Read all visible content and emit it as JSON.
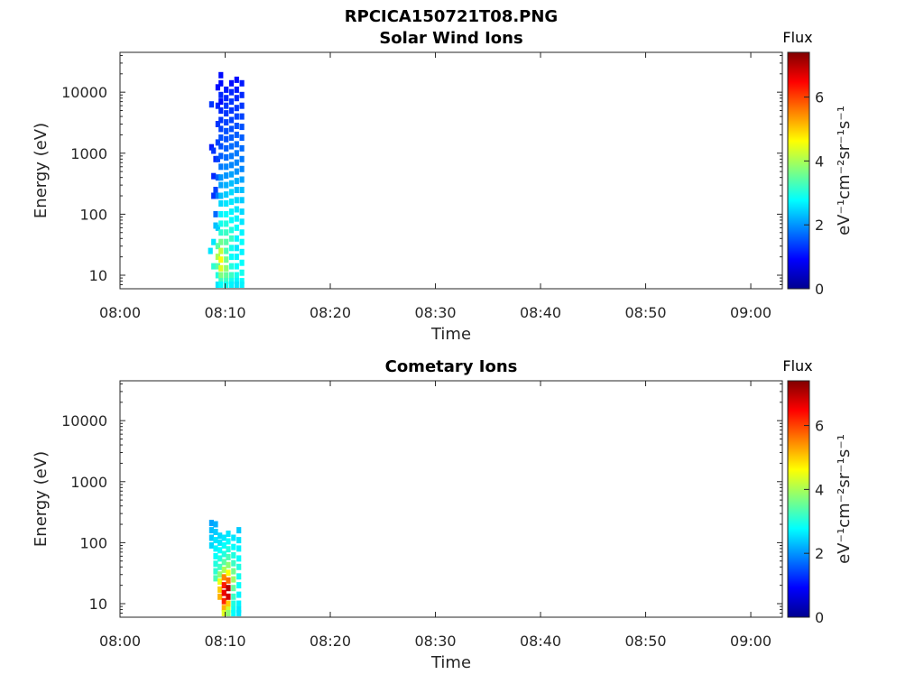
{
  "figure_title": "RPCICA150721T08.PNG",
  "chart_data": [
    {
      "type": "heatmap",
      "title": "Solar Wind Ions",
      "xlabel": "Time",
      "ylabel": "Energy (eV)",
      "x_range_minutes": [
        0,
        63
      ],
      "x_tick_labels": [
        "08:00",
        "08:10",
        "08:20",
        "08:30",
        "08:40",
        "08:50",
        "09:00"
      ],
      "yscale": "log",
      "ylim": [
        6,
        45000
      ],
      "y_tick_labels": [
        "10",
        "100",
        "1000",
        "10000"
      ],
      "y_tick_values": [
        10,
        100,
        1000,
        10000
      ],
      "colorbar": {
        "label": "Flux",
        "units": "eV⁻¹cm⁻²sr⁻¹s⁻¹",
        "range": [
          0,
          7.4
        ],
        "tick_labels": [
          "0",
          "2",
          "4",
          "6"
        ],
        "tick_values": [
          0,
          2,
          4,
          6
        ],
        "colormap": "jet"
      },
      "columns": [
        {
          "t": 8.6,
          "cells": [
            [
              25,
              2.6
            ]
          ]
        },
        {
          "t": 8.7,
          "cells": [
            [
              6300,
              1.3
            ],
            [
              1250,
              1.1
            ]
          ]
        },
        {
          "t": 8.9,
          "cells": [
            [
              1100,
              1.3
            ],
            [
              420,
              1.2
            ],
            [
              200,
              1.3
            ],
            [
              35,
              2.6
            ],
            [
              14,
              3.1
            ]
          ]
        },
        {
          "t": 9.1,
          "cells": [
            [
              100,
              1.7
            ],
            [
              65,
              2.3
            ],
            [
              250,
              1.4
            ],
            [
              800,
              1.2
            ]
          ]
        },
        {
          "t": 9.3,
          "cells": [
            [
              12000,
              1.0
            ],
            [
              6000,
              1.2
            ],
            [
              3000,
              1.3
            ],
            [
              1500,
              1.4
            ],
            [
              800,
              1.4
            ],
            [
              400,
              1.6
            ],
            [
              200,
              1.8
            ],
            [
              60,
              2.4
            ],
            [
              30,
              3.4
            ],
            [
              20,
              4.0
            ],
            [
              14,
              3.4
            ],
            [
              10,
              3.0
            ],
            [
              7,
              2.6
            ]
          ]
        },
        {
          "t": 9.6,
          "cells": [
            [
              19000,
              1.0
            ],
            [
              14000,
              1.0
            ],
            [
              9000,
              1.2
            ],
            [
              7000,
              1.0
            ],
            [
              5000,
              1.2
            ],
            [
              3500,
              1.3
            ],
            [
              2500,
              1.4
            ],
            [
              1800,
              1.5
            ],
            [
              1300,
              1.5
            ],
            [
              900,
              1.6
            ],
            [
              600,
              1.8
            ],
            [
              400,
              2.0
            ],
            [
              300,
              2.1
            ],
            [
              200,
              2.3
            ],
            [
              150,
              2.5
            ],
            [
              100,
              2.7
            ],
            [
              70,
              2.9
            ],
            [
              50,
              3.1
            ],
            [
              35,
              3.6
            ],
            [
              25,
              4.2
            ],
            [
              18,
              4.6
            ],
            [
              13,
              4.4
            ],
            [
              10,
              3.7
            ],
            [
              8,
              3.2
            ],
            [
              7,
              2.8
            ]
          ]
        },
        {
          "t": 10.1,
          "cells": [
            [
              11000,
              1.1
            ],
            [
              8000,
              1.2
            ],
            [
              6000,
              1.3
            ],
            [
              4500,
              1.3
            ],
            [
              3200,
              1.4
            ],
            [
              2300,
              1.5
            ],
            [
              1700,
              1.5
            ],
            [
              1200,
              1.6
            ],
            [
              850,
              1.7
            ],
            [
              600,
              1.9
            ],
            [
              430,
              2.0
            ],
            [
              300,
              2.2
            ],
            [
              210,
              2.4
            ],
            [
              150,
              2.6
            ],
            [
              100,
              2.8
            ],
            [
              70,
              3.0
            ],
            [
              50,
              3.2
            ],
            [
              35,
              3.4
            ],
            [
              25,
              3.3
            ],
            [
              18,
              3.6
            ],
            [
              13,
              3.8
            ],
            [
              10,
              3.5
            ],
            [
              8,
              3.2
            ],
            [
              7,
              2.9
            ]
          ]
        },
        {
          "t": 10.6,
          "cells": [
            [
              14000,
              1.0
            ],
            [
              10000,
              1.2
            ],
            [
              7000,
              1.3
            ],
            [
              5000,
              1.3
            ],
            [
              3500,
              1.4
            ],
            [
              2500,
              1.5
            ],
            [
              1800,
              1.6
            ],
            [
              1300,
              1.7
            ],
            [
              900,
              1.8
            ],
            [
              640,
              1.9
            ],
            [
              450,
              2.1
            ],
            [
              320,
              2.3
            ],
            [
              230,
              2.5
            ],
            [
              160,
              2.6
            ],
            [
              110,
              2.7
            ],
            [
              80,
              2.8
            ],
            [
              55,
              3.0
            ],
            [
              40,
              3.2
            ],
            [
              28,
              2.9
            ],
            [
              20,
              2.8
            ],
            [
              14,
              3.0
            ],
            [
              10,
              3.2
            ],
            [
              8,
              2.9
            ],
            [
              7,
              2.7
            ]
          ]
        },
        {
          "t": 11.1,
          "cells": [
            [
              16000,
              1.0
            ],
            [
              11000,
              1.1
            ],
            [
              8000,
              1.2
            ],
            [
              5500,
              1.3
            ],
            [
              4000,
              1.4
            ],
            [
              2800,
              1.5
            ],
            [
              2000,
              1.6
            ],
            [
              1400,
              1.7
            ],
            [
              1000,
              1.8
            ],
            [
              700,
              1.9
            ],
            [
              500,
              2.0
            ],
            [
              350,
              2.2
            ],
            [
              250,
              2.3
            ],
            [
              170,
              2.5
            ],
            [
              120,
              2.6
            ],
            [
              85,
              2.7
            ],
            [
              60,
              2.8
            ],
            [
              40,
              2.7
            ],
            [
              28,
              2.6
            ],
            [
              20,
              2.7
            ],
            [
              14,
              2.8
            ],
            [
              10,
              2.9
            ],
            [
              8,
              2.7
            ],
            [
              7,
              2.6
            ]
          ]
        },
        {
          "t": 11.6,
          "cells": [
            [
              14000,
              1.1
            ],
            [
              9000,
              1.2
            ],
            [
              6000,
              1.3
            ],
            [
              4000,
              1.4
            ],
            [
              2700,
              1.5
            ],
            [
              1800,
              1.6
            ],
            [
              1200,
              1.7
            ],
            [
              800,
              1.8
            ],
            [
              550,
              1.9
            ],
            [
              370,
              2.1
            ],
            [
              250,
              2.3
            ],
            [
              170,
              2.4
            ],
            [
              110,
              2.5
            ],
            [
              75,
              2.6
            ],
            [
              50,
              2.7
            ],
            [
              35,
              2.8
            ],
            [
              24,
              2.7
            ],
            [
              16,
              2.8
            ],
            [
              11,
              2.9
            ],
            [
              8,
              2.8
            ],
            [
              7,
              2.7
            ]
          ]
        }
      ]
    },
    {
      "type": "heatmap",
      "title": "Cometary Ions",
      "xlabel": "Time",
      "ylabel": "Energy (eV)",
      "x_range_minutes": [
        0,
        63
      ],
      "x_tick_labels": [
        "08:00",
        "08:10",
        "08:20",
        "08:30",
        "08:40",
        "08:50",
        "09:00"
      ],
      "yscale": "log",
      "ylim": [
        6,
        45000
      ],
      "y_tick_labels": [
        "10",
        "100",
        "1000",
        "10000"
      ],
      "y_tick_values": [
        10,
        100,
        1000,
        10000
      ],
      "colorbar": {
        "label": "Flux",
        "units": "eV⁻¹cm⁻²sr⁻¹s⁻¹",
        "range": [
          0,
          7.4
        ],
        "tick_labels": [
          "0",
          "2",
          "4",
          "6"
        ],
        "tick_values": [
          0,
          2,
          4,
          6
        ],
        "colormap": "jet"
      },
      "columns": [
        {
          "t": 8.7,
          "cells": [
            [
              210,
              2.1
            ],
            [
              160,
              2.3
            ],
            [
              120,
              2.4
            ],
            [
              90,
              2.5
            ]
          ]
        },
        {
          "t": 9.1,
          "cells": [
            [
              200,
              2.2
            ],
            [
              150,
              2.4
            ],
            [
              110,
              2.6
            ],
            [
              80,
              2.7
            ],
            [
              60,
              2.8
            ],
            [
              45,
              3.0
            ],
            [
              34,
              3.1
            ],
            [
              26,
              3.3
            ]
          ]
        },
        {
          "t": 9.5,
          "cells": [
            [
              130,
              2.5
            ],
            [
              100,
              2.6
            ],
            [
              75,
              2.8
            ],
            [
              55,
              3.0
            ],
            [
              40,
              3.2
            ],
            [
              30,
              3.8
            ],
            [
              23,
              4.5
            ],
            [
              17,
              5.0
            ],
            [
              13,
              5.2
            ]
          ]
        },
        {
          "t": 9.9,
          "cells": [
            [
              120,
              2.6
            ],
            [
              90,
              2.8
            ],
            [
              65,
              3.0
            ],
            [
              48,
              3.4
            ],
            [
              36,
              4.0
            ],
            [
              27,
              5.5
            ],
            [
              20,
              6.3
            ],
            [
              15,
              6.6
            ],
            [
              11,
              6.2
            ],
            [
              8.5,
              5.2
            ],
            [
              7,
              4.4
            ]
          ]
        },
        {
          "t": 10.3,
          "cells": [
            [
              140,
              2.6
            ],
            [
              105,
              2.8
            ],
            [
              78,
              3.0
            ],
            [
              58,
              3.3
            ],
            [
              43,
              3.8
            ],
            [
              32,
              4.6
            ],
            [
              24,
              5.7
            ],
            [
              18,
              7.0
            ],
            [
              13,
              6.8
            ],
            [
              10,
              5.0
            ],
            [
              8,
              4.3
            ],
            [
              7,
              3.8
            ]
          ]
        },
        {
          "t": 10.8,
          "cells": [
            [
              120,
              2.6
            ],
            [
              85,
              2.8
            ],
            [
              62,
              3.0
            ],
            [
              46,
              3.2
            ],
            [
              34,
              3.6
            ],
            [
              25,
              3.9
            ],
            [
              18,
              3.5
            ],
            [
              13,
              3.2
            ],
            [
              10,
              3.0
            ],
            [
              8,
              2.9
            ],
            [
              7,
              2.8
            ]
          ]
        },
        {
          "t": 11.3,
          "cells": [
            [
              160,
              2.4
            ],
            [
              110,
              2.6
            ],
            [
              80,
              2.7
            ],
            [
              55,
              2.8
            ],
            [
              40,
              3.0
            ],
            [
              28,
              2.9
            ],
            [
              20,
              2.8
            ],
            [
              14,
              2.7
            ],
            [
              10,
              2.7
            ],
            [
              8,
              2.6
            ],
            [
              7,
              2.6
            ]
          ]
        }
      ]
    }
  ]
}
